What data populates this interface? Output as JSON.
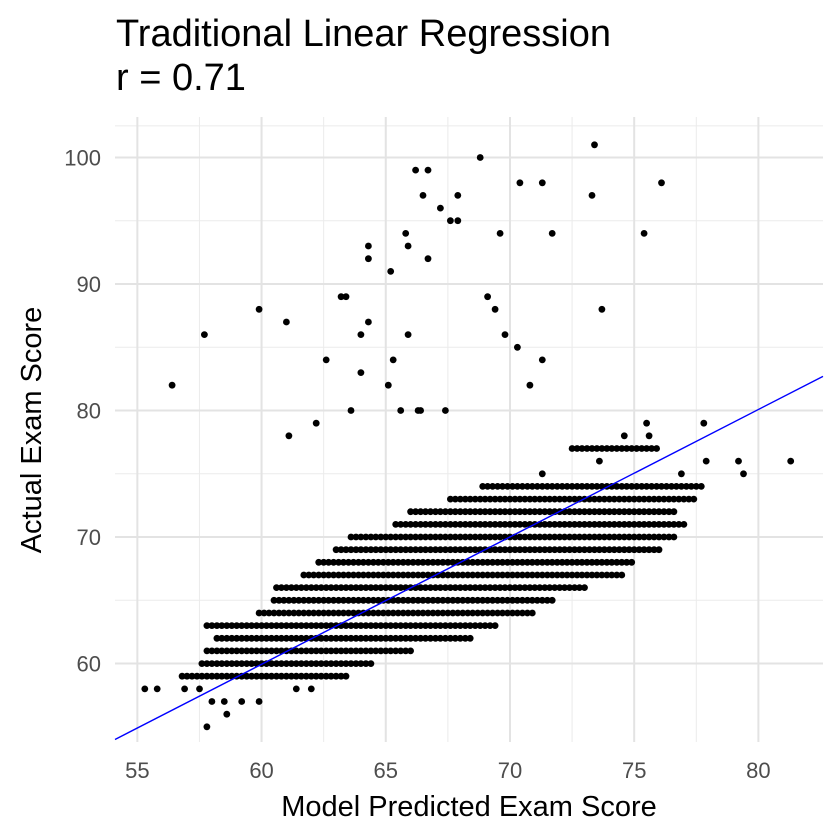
{
  "chart_data": {
    "type": "scatter",
    "title": "Traditional Linear Regression",
    "subtitle": "r = 0.71",
    "xlabel": "Model Predicted Exam Score",
    "ylabel": "Actual Exam Score",
    "xlim": [
      54.1,
      82.6
    ],
    "ylim": [
      53.8,
      103.2
    ],
    "x_ticks": [
      55,
      60,
      65,
      70,
      75,
      80
    ],
    "y_ticks": [
      60,
      70,
      80,
      90,
      100
    ],
    "grid": true,
    "point_color": "#000000",
    "line_color": "#0000ff",
    "regression_line": {
      "x": [
        54.1,
        82.6
      ],
      "y": [
        54.0,
        82.7
      ]
    },
    "outliers": [
      {
        "x": 56.4,
        "y": 82
      },
      {
        "x": 57.7,
        "y": 86
      },
      {
        "x": 59.9,
        "y": 88
      },
      {
        "x": 61.0,
        "y": 87
      },
      {
        "x": 61.1,
        "y": 78
      },
      {
        "x": 62.2,
        "y": 79
      },
      {
        "x": 62.6,
        "y": 84
      },
      {
        "x": 63.2,
        "y": 89
      },
      {
        "x": 63.4,
        "y": 89
      },
      {
        "x": 63.6,
        "y": 80
      },
      {
        "x": 64.0,
        "y": 83
      },
      {
        "x": 64.0,
        "y": 86
      },
      {
        "x": 64.3,
        "y": 92
      },
      {
        "x": 64.3,
        "y": 93
      },
      {
        "x": 64.3,
        "y": 87
      },
      {
        "x": 65.1,
        "y": 82
      },
      {
        "x": 65.2,
        "y": 91
      },
      {
        "x": 65.3,
        "y": 84
      },
      {
        "x": 65.6,
        "y": 80
      },
      {
        "x": 65.8,
        "y": 94
      },
      {
        "x": 65.9,
        "y": 93
      },
      {
        "x": 65.9,
        "y": 86
      },
      {
        "x": 66.2,
        "y": 99
      },
      {
        "x": 66.3,
        "y": 80
      },
      {
        "x": 66.4,
        "y": 80
      },
      {
        "x": 66.5,
        "y": 97
      },
      {
        "x": 66.7,
        "y": 99
      },
      {
        "x": 66.7,
        "y": 92
      },
      {
        "x": 67.2,
        "y": 96
      },
      {
        "x": 67.4,
        "y": 80
      },
      {
        "x": 67.6,
        "y": 95
      },
      {
        "x": 67.9,
        "y": 95
      },
      {
        "x": 67.9,
        "y": 97
      },
      {
        "x": 68.8,
        "y": 100
      },
      {
        "x": 69.1,
        "y": 89
      },
      {
        "x": 69.4,
        "y": 88
      },
      {
        "x": 69.6,
        "y": 94
      },
      {
        "x": 69.8,
        "y": 86
      },
      {
        "x": 70.3,
        "y": 85
      },
      {
        "x": 70.4,
        "y": 98
      },
      {
        "x": 70.8,
        "y": 82
      },
      {
        "x": 71.3,
        "y": 98
      },
      {
        "x": 71.3,
        "y": 84
      },
      {
        "x": 71.7,
        "y": 94
      },
      {
        "x": 73.3,
        "y": 97
      },
      {
        "x": 73.4,
        "y": 101
      },
      {
        "x": 73.7,
        "y": 88
      },
      {
        "x": 75.4,
        "y": 94
      },
      {
        "x": 76.1,
        "y": 98
      }
    ],
    "band": {
      "min_score": 55,
      "max_score": 79,
      "x_step": 0.2,
      "rows": [
        {
          "y": 55,
          "x": [
            57.8
          ]
        },
        {
          "y": 56,
          "x": [
            58.6
          ]
        },
        {
          "y": 57,
          "x": [
            58.0,
            58.5,
            59.2,
            59.9
          ]
        },
        {
          "y": 58,
          "x": [
            55.3,
            55.8,
            56.9,
            57.5,
            61.4,
            62.0
          ]
        },
        {
          "y": 59,
          "x": [
            56.8,
            63.4
          ]
        },
        {
          "y": 60,
          "x": [
            57.6,
            64.4
          ]
        },
        {
          "y": 61,
          "x": [
            57.8,
            66.0
          ]
        },
        {
          "y": 62,
          "x": [
            58.2,
            68.5
          ]
        },
        {
          "y": 63,
          "x": [
            57.8,
            69.5
          ]
        },
        {
          "y": 64,
          "x": [
            59.9,
            71.0
          ]
        },
        {
          "y": 65,
          "x": [
            60.5,
            71.8
          ]
        },
        {
          "y": 66,
          "x": [
            60.6,
            73.0
          ]
        },
        {
          "y": 67,
          "x": [
            61.7,
            74.5
          ]
        },
        {
          "y": 68,
          "x": [
            62.3,
            75.0
          ]
        },
        {
          "y": 69,
          "x": [
            63.0,
            76.0
          ]
        },
        {
          "y": 70,
          "x": [
            63.6,
            76.6
          ]
        },
        {
          "y": 71,
          "x": [
            65.4,
            77.0
          ]
        },
        {
          "y": 72,
          "x": [
            66.0,
            76.6
          ]
        },
        {
          "y": 73,
          "x": [
            67.6,
            77.5
          ]
        },
        {
          "y": 74,
          "x": [
            68.9,
            77.7
          ]
        },
        {
          "y": 75,
          "x": [
            71.3,
            76.9,
            79.4
          ]
        },
        {
          "y": 76,
          "x": [
            73.6,
            77.9,
            79.2,
            81.3
          ]
        },
        {
          "y": 77,
          "x": [
            72.5,
            75.9
          ]
        },
        {
          "y": 78,
          "x": [
            74.6,
            75.6
          ]
        },
        {
          "y": 79,
          "x": [
            75.5,
            77.8
          ]
        }
      ]
    }
  }
}
